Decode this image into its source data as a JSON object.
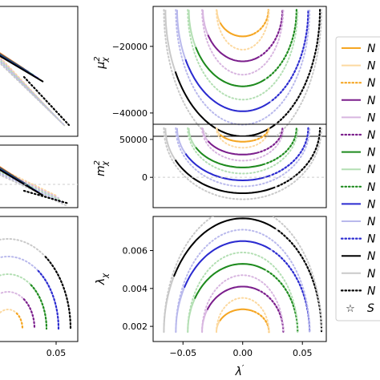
{
  "figure": {
    "description_free": true
  },
  "legend": {
    "entries": [
      {
        "label": "N",
        "color": "#f5a623",
        "style": "solid"
      },
      {
        "label": "N",
        "color": "#fcd9a0",
        "style": "solid"
      },
      {
        "label": "N",
        "color": "#f5a623",
        "style": "dotted"
      },
      {
        "label": "N",
        "color": "#7b1f8c",
        "style": "solid"
      },
      {
        "label": "N",
        "color": "#d8b6e0",
        "style": "solid"
      },
      {
        "label": "N",
        "color": "#7b1f8c",
        "style": "dotted"
      },
      {
        "label": "N",
        "color": "#1e8a1e",
        "style": "solid"
      },
      {
        "label": "N",
        "color": "#b4dfb4",
        "style": "solid"
      },
      {
        "label": "N",
        "color": "#1e8a1e",
        "style": "dotted"
      },
      {
        "label": "N",
        "color": "#2b2bd0",
        "style": "solid"
      },
      {
        "label": "N",
        "color": "#b9b9ec",
        "style": "solid"
      },
      {
        "label": "N",
        "color": "#2b2bd0",
        "style": "dotted"
      },
      {
        "label": "N",
        "color": "#000000",
        "style": "solid"
      },
      {
        "label": "N",
        "color": "#c9c9c9",
        "style": "solid"
      },
      {
        "label": "N",
        "color": "#000000",
        "style": "dotted"
      },
      {
        "label": "S",
        "color": "#e02020",
        "style": "star"
      }
    ]
  },
  "chart_data": [
    {
      "type": "line",
      "panel": "left-top",
      "xlabel": "",
      "ylabel": "",
      "xticks": [],
      "yticks": []
    },
    {
      "type": "line",
      "panel": "left-middle",
      "xlabel": "",
      "ylabel": "",
      "xticks": [],
      "yticks": []
    },
    {
      "type": "line",
      "panel": "left-bottom",
      "xlabel": "",
      "ylabel": "",
      "xticks": [
        "0.05"
      ],
      "yticks": []
    },
    {
      "type": "line",
      "panel": "right-top",
      "xlabel": "",
      "ylabel": "μ²χ",
      "ylabel_main": "μ",
      "ylabel_sup": "2",
      "ylabel_sub": "χ",
      "ylim": [
        -47000,
        -8000
      ],
      "yticks": [
        "−20000",
        "−40000"
      ],
      "ytick_values": [
        -20000,
        -40000
      ],
      "xlim": [
        -0.075,
        0.07
      ]
    },
    {
      "type": "line",
      "panel": "right-middle",
      "xlabel": "",
      "ylabel_main": "m",
      "ylabel_sup": "2",
      "ylabel_sub": "χ",
      "ylim": [
        -40000,
        70000
      ],
      "yticks": [
        "50000",
        "0"
      ],
      "ytick_values": [
        50000,
        0
      ],
      "xlim": [
        -0.075,
        0.07
      ]
    },
    {
      "type": "line",
      "panel": "right-bottom",
      "xlabel_main": "λ",
      "xlabel_sup": "′",
      "ylabel_main": "λ",
      "ylabel_sub": "χ",
      "ylim": [
        0.0012,
        0.0078
      ],
      "yticks": [
        "0.006",
        "0.004",
        "0.002"
      ],
      "ytick_values": [
        0.006,
        0.004,
        0.002
      ],
      "xlim": [
        -0.075,
        0.07
      ],
      "xticks": [
        "−0.05",
        "0.00",
        "0.05"
      ],
      "xtick_values": [
        -0.05,
        0.0,
        0.05
      ]
    }
  ]
}
